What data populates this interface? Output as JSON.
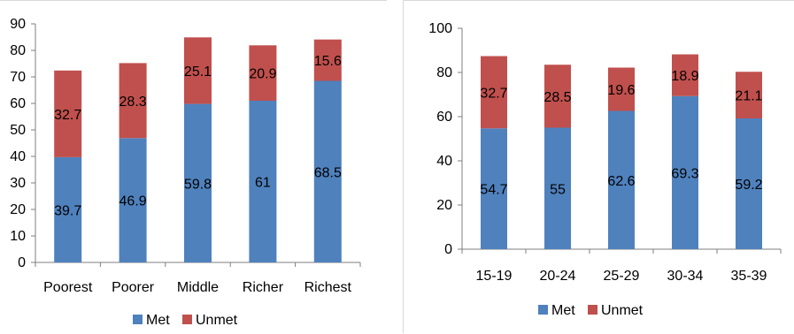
{
  "colors": {
    "met": "#4f81bd",
    "unmet": "#c0504d",
    "axis": "#7f7f7f",
    "text": "#000000"
  },
  "chart_data": [
    {
      "type": "bar",
      "stacked": true,
      "categories": [
        "Poorest",
        "Poorer",
        "Middle",
        "Richer",
        "Richest"
      ],
      "series": [
        {
          "name": "Met",
          "values": [
            39.7,
            46.9,
            59.8,
            61,
            68.5
          ]
        },
        {
          "name": "Unmet",
          "values": [
            32.7,
            28.3,
            25.1,
            20.9,
            15.6
          ]
        }
      ],
      "ylim": [
        0,
        90
      ],
      "yticks": [
        "0",
        "10",
        "20",
        "30",
        "40",
        "50",
        "60",
        "70",
        "80",
        "90"
      ],
      "grid": false,
      "legend": "bottom"
    },
    {
      "type": "bar",
      "stacked": true,
      "categories": [
        "15-19",
        "20-24",
        "25-29",
        "30-34",
        "35-39"
      ],
      "series": [
        {
          "name": "Met",
          "values": [
            54.7,
            55,
            62.6,
            69.3,
            59.2
          ]
        },
        {
          "name": "Unmet",
          "values": [
            32.7,
            28.5,
            19.6,
            18.9,
            21.1
          ]
        }
      ],
      "ylim": [
        0,
        100
      ],
      "yticks": [
        "0",
        "20",
        "40",
        "60",
        "80",
        "100"
      ],
      "grid": false,
      "legend": "bottom"
    }
  ]
}
